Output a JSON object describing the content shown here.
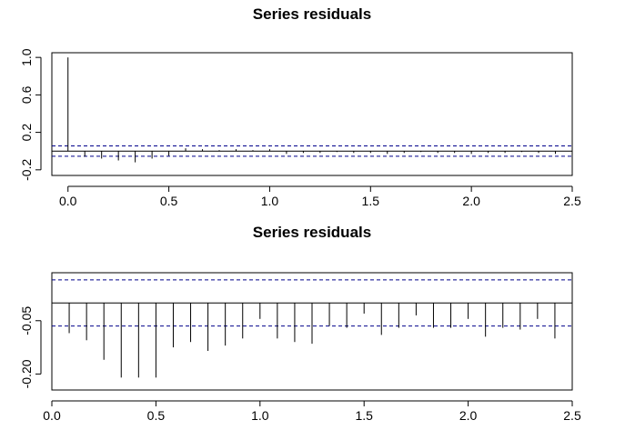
{
  "chart_data": [
    {
      "type": "bar",
      "title": "Series  residuals",
      "x_ticks": [
        "0.0",
        "0.5",
        "1.0",
        "1.5",
        "2.0",
        "2.5"
      ],
      "y_ticks": [
        "-0.2",
        "0.2",
        "0.6",
        "1.0"
      ],
      "xlim": [
        -0.08,
        2.5
      ],
      "ylim": [
        -0.26,
        1.05
      ],
      "zero_line": 0,
      "confidence_bounds": [
        0.055,
        -0.055
      ],
      "bound_color": "#00008B",
      "x": [
        0.0,
        0.0833,
        0.1667,
        0.25,
        0.3333,
        0.4167,
        0.5,
        0.5833,
        0.6667,
        0.75,
        0.8333,
        0.9167,
        1.0,
        1.0833,
        1.1667,
        1.25,
        1.3333,
        1.4167,
        1.5,
        1.5833,
        1.6667,
        1.75,
        1.8333,
        1.9167,
        2.0,
        2.0833,
        2.1667,
        2.25,
        2.3333,
        2.4167
      ],
      "values": [
        1.0,
        -0.06,
        -0.08,
        -0.1,
        -0.12,
        -0.08,
        -0.05,
        0.03,
        0.02,
        0.01,
        0.02,
        0.01,
        0.02,
        -0.03,
        -0.02,
        -0.02,
        -0.01,
        -0.02,
        -0.02,
        -0.03,
        -0.02,
        -0.01,
        -0.02,
        -0.02,
        -0.03,
        -0.02,
        -0.02,
        -0.01,
        -0.02,
        -0.03
      ]
    },
    {
      "type": "bar",
      "title": "Series  residuals",
      "x_ticks": [
        "0.0",
        "0.5",
        "1.0",
        "1.5",
        "2.0",
        "2.5"
      ],
      "y_ticks": [
        "-0.20",
        "-0.05"
      ],
      "xlim": [
        0.0,
        2.5
      ],
      "ylim": [
        -0.245,
        0.085
      ],
      "zero_line": 0,
      "confidence_bounds": [
        0.065,
        -0.065
      ],
      "bound_color": "#00008B",
      "x": [
        0.0833,
        0.1667,
        0.25,
        0.3333,
        0.4167,
        0.5,
        0.5833,
        0.6667,
        0.75,
        0.8333,
        0.9167,
        1.0,
        1.0833,
        1.1667,
        1.25,
        1.3333,
        1.4167,
        1.5,
        1.5833,
        1.6667,
        1.75,
        1.8333,
        1.9167,
        2.0,
        2.0833,
        2.1667,
        2.25,
        2.3333,
        2.4167
      ],
      "values": [
        -0.085,
        -0.105,
        -0.16,
        -0.21,
        -0.21,
        -0.21,
        -0.125,
        -0.11,
        -0.135,
        -0.12,
        -0.1,
        -0.045,
        -0.1,
        -0.11,
        -0.115,
        -0.065,
        -0.07,
        -0.03,
        -0.09,
        -0.07,
        -0.035,
        -0.07,
        -0.07,
        -0.045,
        -0.095,
        -0.07,
        -0.075,
        -0.045,
        -0.1
      ]
    }
  ]
}
